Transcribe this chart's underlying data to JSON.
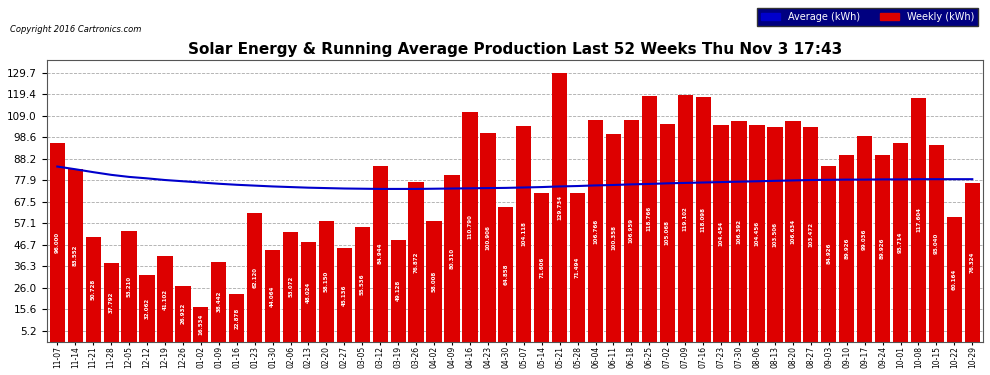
{
  "title": "Solar Energy & Running Average Production Last 52 Weeks Thu Nov 3 17:43",
  "copyright": "Copyright 2016 Cartronics.com",
  "legend_avg": "Average (kWh)",
  "legend_weekly": "Weekly (kWh)",
  "bar_color": "#DD0000",
  "avg_line_color": "#0000CC",
  "background_color": "#FFFFFF",
  "plot_bg_color": "#FFFFFF",
  "grid_color": "#AAAAAA",
  "yticks": [
    5.2,
    15.6,
    26.0,
    36.3,
    46.7,
    57.1,
    67.5,
    77.9,
    88.2,
    98.6,
    109.0,
    119.4,
    129.7
  ],
  "dates": [
    "11-07",
    "11-14",
    "11-21",
    "11-28",
    "12-05",
    "12-12",
    "12-19",
    "12-26",
    "01-02",
    "01-09",
    "01-16",
    "01-23",
    "01-30",
    "02-06",
    "02-13",
    "02-20",
    "02-27",
    "03-05",
    "03-12",
    "03-19",
    "03-26",
    "04-02",
    "04-09",
    "04-16",
    "04-23",
    "04-30",
    "05-07",
    "05-14",
    "05-21",
    "05-28",
    "06-04",
    "06-11",
    "06-18",
    "06-25",
    "07-02",
    "07-09",
    "07-16",
    "07-23",
    "07-30",
    "08-06",
    "08-13",
    "08-20",
    "08-27",
    "09-03",
    "09-10",
    "09-17",
    "09-24",
    "10-01",
    "10-08",
    "10-15",
    "10-22",
    "10-29"
  ],
  "weekly_values": [
    96.0,
    83.552,
    50.728,
    37.792,
    53.21,
    32.062,
    41.102,
    26.932,
    16.534,
    38.442,
    22.878,
    62.12,
    44.064,
    53.072,
    48.024,
    58.15,
    45.136,
    55.536,
    84.944,
    49.128,
    76.872,
    58.008,
    80.31,
    110.79,
    100.906,
    64.858,
    104.118,
    71.606,
    129.734,
    71.494,
    106.766,
    100.358,
    106.959,
    118.766,
    105.068,
    119.102,
    118.098,
    104.454,
    106.392,
    104.456,
    103.506,
    106.634,
    103.472,
    84.926,
    89.926,
    99.036,
    89.926,
    95.714,
    117.604,
    95.04,
    60.164,
    76.324
  ],
  "avg_values": [
    84.5,
    83.2,
    81.8,
    80.5,
    79.5,
    78.8,
    78.0,
    77.4,
    76.8,
    76.2,
    75.7,
    75.3,
    74.9,
    74.6,
    74.3,
    74.1,
    73.9,
    73.8,
    73.7,
    73.7,
    73.7,
    73.8,
    73.9,
    74.0,
    74.1,
    74.2,
    74.4,
    74.6,
    74.9,
    75.1,
    75.4,
    75.6,
    75.9,
    76.1,
    76.4,
    76.6,
    76.8,
    77.0,
    77.2,
    77.4,
    77.6,
    77.8,
    78.0,
    78.1,
    78.2,
    78.2,
    78.3,
    78.3,
    78.4,
    78.4,
    78.4,
    78.4
  ]
}
